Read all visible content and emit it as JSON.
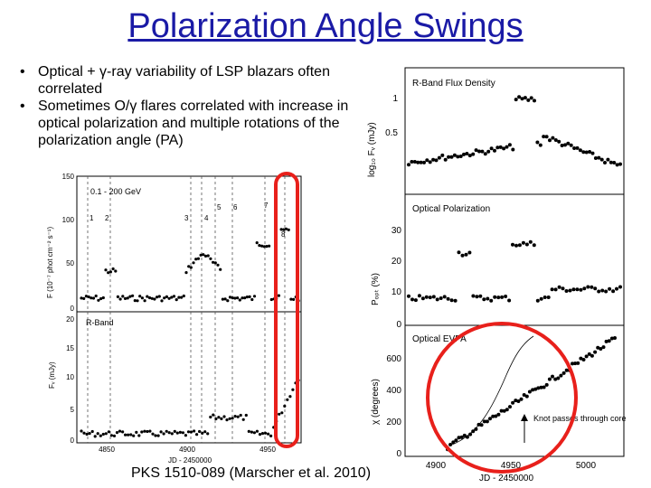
{
  "slide": {
    "title": "Polarization Angle Swings",
    "bullets": [
      "Optical + γ-ray variability of LSP blazars often correlated",
      "Sometimes O/γ flares correlated with increase in optical polarization and multiple rotations of the polarization angle (PA)"
    ],
    "caption": "PKS 1510-089 (Marscher et al. 2010)"
  },
  "left_figure": {
    "top_panel_label": "0.1 - 200 GeV",
    "top_ylabel": "F (10⁻⁷ phot cm⁻² s⁻¹)",
    "top_yticks": [
      "150",
      "100",
      "50",
      "0"
    ],
    "flare_labels": [
      "1",
      "2",
      "3",
      "4",
      "5",
      "6",
      "7",
      "8"
    ],
    "bottom_panel_label": "R-Band",
    "bottom_ylabel": "Fᵥ (mJy)",
    "bottom_yticks": [
      "20",
      "15",
      "10",
      "5",
      "0"
    ],
    "xticks": [
      "4850",
      "4900",
      "4950"
    ],
    "xlabel": "JD - 2450000"
  },
  "right_figure": {
    "panel1_label": "R-Band Flux Density",
    "panel1_ylabel": "log₁₀ Fᵥ (mJy)",
    "panel1_yticks": [
      "1",
      "0.5"
    ],
    "panel2_label": "Optical Polarization",
    "panel2_ylabel": "Pₒₚₜ (%)",
    "panel2_yticks": [
      "30",
      "20",
      "10",
      "0"
    ],
    "panel3_label": "Optical EVPA",
    "panel3_ylabel": "χ (degrees)",
    "panel3_yticks": [
      "600",
      "400",
      "200",
      "0"
    ],
    "annotation": "Knot passes through core",
    "xticks": [
      "4900",
      "4950",
      "5000"
    ],
    "xlabel": "JD - 2450000"
  },
  "colors": {
    "title": "#1a1aa6",
    "highlight": "#e8201b"
  }
}
